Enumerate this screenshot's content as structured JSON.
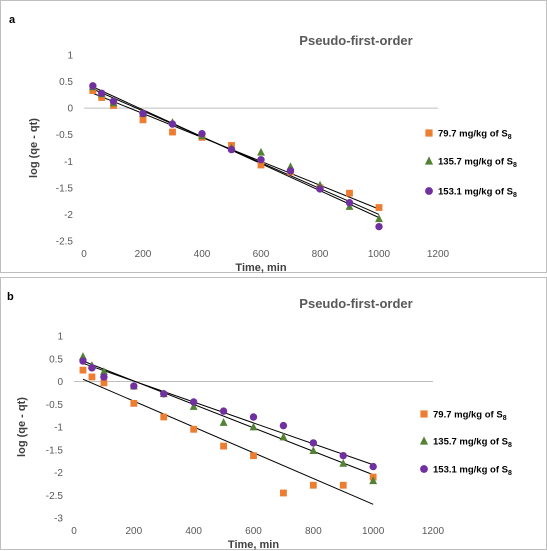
{
  "chart_data": [
    {
      "panel_label": "a",
      "type": "scatter",
      "title": "Pseudo-first-order",
      "xlabel": "Time, min",
      "ylabel": "log (qe - qt)",
      "xlim": [
        0,
        1200
      ],
      "ylim": [
        -2.5,
        1
      ],
      "xticks": [
        0,
        200,
        400,
        600,
        800,
        1000,
        1200
      ],
      "yticks": [
        1,
        0.5,
        0,
        -0.5,
        -1,
        -1.5,
        -2,
        -2.5
      ],
      "legend_position": "right",
      "grid": false,
      "series": [
        {
          "name": "79.7 mg/kg of S",
          "sub": "8",
          "marker": "square",
          "color": "#ED7D31",
          "x": [
            30,
            60,
            100,
            200,
            300,
            400,
            500,
            600,
            700,
            800,
            900,
            1000
          ],
          "y": [
            0.33,
            0.2,
            0.05,
            -0.22,
            -0.45,
            -0.55,
            -0.7,
            -1.07,
            -1.2,
            -1.5,
            -1.6,
            -1.87
          ],
          "trend": [
            [
              30,
              0.28
            ],
            [
              1000,
              -1.9
            ]
          ]
        },
        {
          "name": "135.7 mg/kg of S",
          "sub": "8",
          "marker": "triangle",
          "color": "#548235",
          "x": [
            30,
            60,
            100,
            200,
            300,
            400,
            500,
            600,
            700,
            800,
            900,
            1000
          ],
          "y": [
            0.4,
            0.27,
            0.1,
            -0.1,
            -0.27,
            -0.52,
            -0.75,
            -0.83,
            -1.1,
            -1.45,
            -1.85,
            -2.08
          ],
          "trend": [
            [
              30,
              0.36
            ],
            [
              1000,
              -2.0
            ]
          ]
        },
        {
          "name": "153.1 mg/kg of S",
          "sub": "8",
          "marker": "circle",
          "color": "#7030A0",
          "x": [
            30,
            60,
            100,
            200,
            300,
            400,
            500,
            600,
            700,
            800,
            900,
            1000
          ],
          "y": [
            0.42,
            0.28,
            0.13,
            -0.1,
            -0.3,
            -0.48,
            -0.78,
            -0.97,
            -1.18,
            -1.52,
            -1.78,
            -2.23
          ],
          "trend": [
            [
              30,
              0.4
            ],
            [
              1000,
              -2.06
            ]
          ]
        }
      ]
    },
    {
      "panel_label": "b",
      "type": "scatter",
      "title": "Pseudo-first-order",
      "xlabel": "Time, min",
      "ylabel": "log (qe - qt)",
      "xlim": [
        0,
        1200
      ],
      "ylim": [
        -3,
        1
      ],
      "xticks": [
        0,
        200,
        400,
        600,
        800,
        1000,
        1200
      ],
      "yticks": [
        1,
        0.5,
        0,
        -0.5,
        -1,
        -1.5,
        -2,
        -2.5,
        -3
      ],
      "legend_position": "right",
      "grid": false,
      "series": [
        {
          "name": "79.7 mg/kg of S",
          "sub": "8",
          "marker": "square",
          "color": "#ED7D31",
          "x": [
            30,
            60,
            100,
            200,
            300,
            400,
            500,
            600,
            700,
            800,
            900,
            1000
          ],
          "y": [
            0.25,
            0.1,
            -0.03,
            -0.48,
            -0.78,
            -1.05,
            -1.42,
            -1.63,
            -2.45,
            -2.28,
            -2.28,
            -2.1
          ],
          "trend": [
            [
              30,
              0.05
            ],
            [
              1000,
              -2.7
            ]
          ]
        },
        {
          "name": "135.7 mg/kg of S",
          "sub": "8",
          "marker": "triangle",
          "color": "#548235",
          "x": [
            30,
            60,
            100,
            200,
            300,
            400,
            500,
            600,
            700,
            800,
            900,
            1000
          ],
          "y": [
            0.55,
            0.35,
            0.22,
            -0.1,
            -0.27,
            -0.55,
            -0.9,
            -1.0,
            -1.22,
            -1.52,
            -1.8,
            -2.18
          ],
          "trend": [
            [
              30,
              0.45
            ],
            [
              1000,
              -2.05
            ]
          ]
        },
        {
          "name": "153.1 mg/kg of S",
          "sub": "8",
          "marker": "circle",
          "color": "#7030A0",
          "x": [
            30,
            60,
            100,
            200,
            300,
            400,
            500,
            600,
            700,
            800,
            900,
            1000
          ],
          "y": [
            0.45,
            0.3,
            0.1,
            -0.1,
            -0.27,
            -0.45,
            -0.65,
            -0.78,
            -0.97,
            -1.35,
            -1.63,
            -1.87
          ],
          "trend": [
            [
              30,
              0.4
            ],
            [
              1000,
              -1.83
            ]
          ]
        }
      ]
    }
  ]
}
